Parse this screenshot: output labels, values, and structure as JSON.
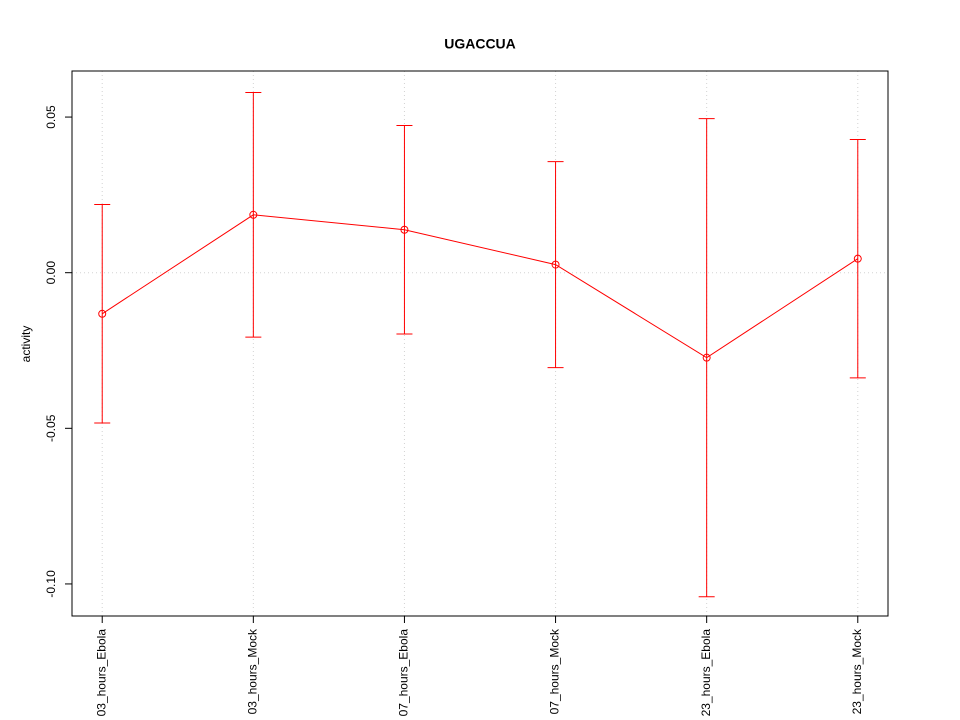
{
  "chart_data": {
    "type": "line",
    "title": "UGACCUA",
    "y_label": "activity",
    "categories": [
      "03_hours_Ebola",
      "03_hours_Mock",
      "07_hours_Ebola",
      "07_hours_Mock",
      "23_hours_Ebola",
      "23_hours_Mock"
    ],
    "series": [
      {
        "color": "#ff0000",
        "values": [
          -0.0132,
          0.0186,
          0.0138,
          0.0026,
          -0.0273,
          0.0045
        ],
        "errors": [
          0.0351,
          0.0393,
          0.0335,
          0.0331,
          0.0768,
          0.0383
        ]
      }
    ],
    "ylim": [
      -0.1103,
      0.0648
    ],
    "yticks": [
      {
        "value": -0.1,
        "label": "-0.10"
      },
      -0.05,
      {
        "value": 0,
        "label": "0.00"
      },
      0.05
    ],
    "grid": true,
    "hline": 0
  }
}
